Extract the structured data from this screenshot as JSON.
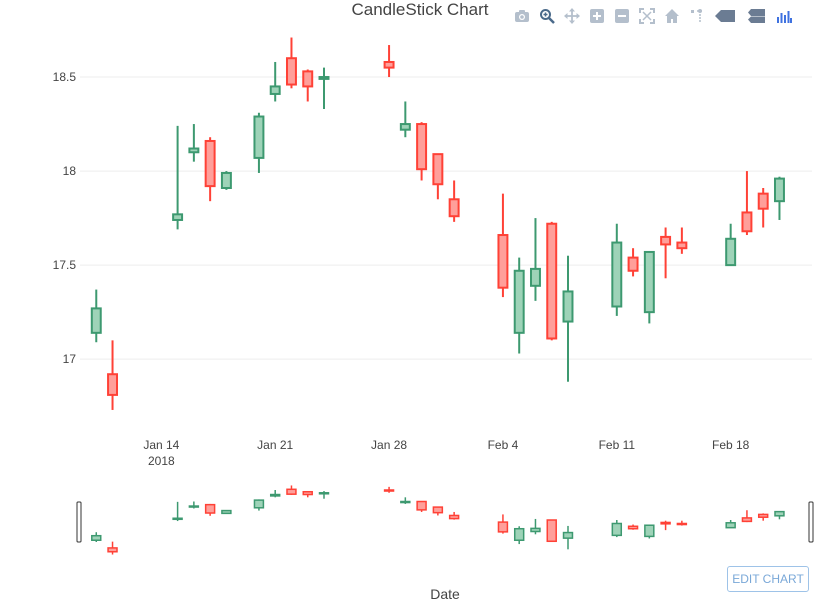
{
  "chart_data": {
    "type": "candlestick",
    "title": "CandleStick Chart",
    "xlabel": "Date",
    "ylabel": "",
    "ylim": [
      16.65,
      18.75
    ],
    "yticks": [
      17,
      17.5,
      18,
      18.5
    ],
    "ytick_labels": [
      "17",
      "17.5",
      "18",
      "18.5"
    ],
    "xticks": [
      {
        "date": "2018-01-14",
        "label": "Jan 14",
        "sublabel": "2018"
      },
      {
        "date": "2018-01-21",
        "label": "Jan 21",
        "sublabel": ""
      },
      {
        "date": "2018-01-28",
        "label": "Jan 28",
        "sublabel": ""
      },
      {
        "date": "2018-02-04",
        "label": "Feb 4",
        "sublabel": ""
      },
      {
        "date": "2018-02-11",
        "label": "Feb 11",
        "sublabel": ""
      },
      {
        "date": "2018-02-18",
        "label": "Feb 18",
        "sublabel": ""
      }
    ],
    "xrange": [
      "2018-01-09",
      "2018-02-23"
    ],
    "increasing_color": "#3d9970",
    "decreasing_color": "#ff4136",
    "increasing_fill": "#9ed3b8",
    "decreasing_fill": "#ff9f9a",
    "candles": [
      {
        "date": "2018-01-10",
        "open": 17.14,
        "high": 17.37,
        "low": 17.09,
        "close": 17.27
      },
      {
        "date": "2018-01-11",
        "open": 16.92,
        "high": 17.1,
        "low": 16.73,
        "close": 16.81
      },
      {
        "date": "2018-01-15",
        "open": 17.74,
        "high": 18.24,
        "low": 17.69,
        "close": 17.77
      },
      {
        "date": "2018-01-16",
        "open": 18.1,
        "high": 18.25,
        "low": 18.05,
        "close": 18.12
      },
      {
        "date": "2018-01-17",
        "open": 18.16,
        "high": 18.18,
        "low": 17.84,
        "close": 17.92
      },
      {
        "date": "2018-01-18",
        "open": 17.91,
        "high": 18.0,
        "low": 17.9,
        "close": 17.99
      },
      {
        "date": "2018-01-20",
        "open": 18.07,
        "high": 18.31,
        "low": 17.99,
        "close": 18.29
      },
      {
        "date": "2018-01-21",
        "open": 18.41,
        "high": 18.58,
        "low": 18.37,
        "close": 18.45
      },
      {
        "date": "2018-01-22",
        "open": 18.6,
        "high": 18.71,
        "low": 18.44,
        "close": 18.46
      },
      {
        "date": "2018-01-23",
        "open": 18.53,
        "high": 18.54,
        "low": 18.37,
        "close": 18.45
      },
      {
        "date": "2018-01-24",
        "open": 18.49,
        "high": 18.55,
        "low": 18.33,
        "close": 18.5
      },
      {
        "date": "2018-01-28",
        "open": 18.58,
        "high": 18.67,
        "low": 18.5,
        "close": 18.55
      },
      {
        "date": "2018-01-29",
        "open": 18.22,
        "high": 18.37,
        "low": 18.18,
        "close": 18.25
      },
      {
        "date": "2018-01-30",
        "open": 18.25,
        "high": 18.26,
        "low": 17.95,
        "close": 18.01
      },
      {
        "date": "2018-01-31",
        "open": 18.09,
        "high": 18.09,
        "low": 17.85,
        "close": 17.93
      },
      {
        "date": "2018-02-01",
        "open": 17.85,
        "high": 17.95,
        "low": 17.73,
        "close": 17.76
      },
      {
        "date": "2018-02-04",
        "open": 17.66,
        "high": 17.88,
        "low": 17.33,
        "close": 17.38
      },
      {
        "date": "2018-02-05",
        "open": 17.14,
        "high": 17.54,
        "low": 17.03,
        "close": 17.47
      },
      {
        "date": "2018-02-06",
        "open": 17.39,
        "high": 17.75,
        "low": 17.31,
        "close": 17.48
      },
      {
        "date": "2018-02-07",
        "open": 17.72,
        "high": 17.73,
        "low": 17.1,
        "close": 17.11
      },
      {
        "date": "2018-02-08",
        "open": 17.2,
        "high": 17.55,
        "low": 16.88,
        "close": 17.36
      },
      {
        "date": "2018-02-11",
        "open": 17.28,
        "high": 17.72,
        "low": 17.23,
        "close": 17.62
      },
      {
        "date": "2018-02-12",
        "open": 17.54,
        "high": 17.59,
        "low": 17.44,
        "close": 17.47
      },
      {
        "date": "2018-02-13",
        "open": 17.25,
        "high": 17.57,
        "low": 17.19,
        "close": 17.57
      },
      {
        "date": "2018-02-14",
        "open": 17.65,
        "high": 17.7,
        "low": 17.43,
        "close": 17.61
      },
      {
        "date": "2018-02-15",
        "open": 17.62,
        "high": 17.7,
        "low": 17.56,
        "close": 17.59
      },
      {
        "date": "2018-02-18",
        "open": 17.5,
        "high": 17.72,
        "low": 17.5,
        "close": 17.64
      },
      {
        "date": "2018-02-19",
        "open": 17.78,
        "high": 18.0,
        "low": 17.66,
        "close": 17.68
      },
      {
        "date": "2018-02-20",
        "open": 17.88,
        "high": 17.91,
        "low": 17.7,
        "close": 17.8
      },
      {
        "date": "2018-02-21",
        "open": 17.84,
        "high": 17.97,
        "low": 17.74,
        "close": 17.96
      }
    ]
  },
  "modebar": {
    "buttons": [
      {
        "name": "camera-icon",
        "title": "Download plot as a png"
      },
      {
        "name": "zoom-icon",
        "title": "Zoom"
      },
      {
        "name": "pan-icon",
        "title": "Pan"
      },
      {
        "name": "zoom-in-icon",
        "title": "Zoom in"
      },
      {
        "name": "zoom-out-icon",
        "title": "Zoom out"
      },
      {
        "name": "autoscale-icon",
        "title": "Autoscale"
      },
      {
        "name": "home-icon",
        "title": "Reset axes"
      },
      {
        "name": "spike-lines-icon",
        "title": "Toggle Spike Lines"
      },
      {
        "name": "hover-closest-icon",
        "title": "Show closest data on hover"
      },
      {
        "name": "hover-compare-icon",
        "title": "Compare data on hover"
      },
      {
        "name": "plotly-logo-icon",
        "title": "Produced with Plotly"
      }
    ]
  },
  "edit_chart_label": "EDIT CHART"
}
